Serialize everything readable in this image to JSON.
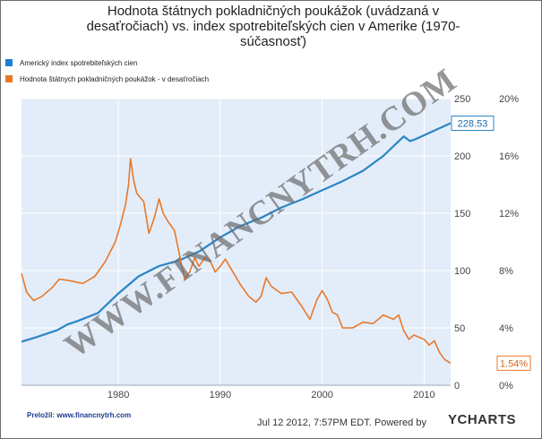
{
  "chart_data": {
    "type": "line",
    "title": "Hodnota štátnych pokladničných poukážok (uvádzaná v desaťročiach) vs. index spotrebiteľských cien v Amerike (1970-súčasnosť)",
    "title_lines": [
      "Hodnota štátnych pokladničných poukážok (uvádzaná v",
      "desaťročiach) vs. index spotrebiteľských cien v Amerike (1970-",
      "súčasnosť)"
    ],
    "legend_position": "top-left",
    "grid": true,
    "x_ticks": [
      "1980",
      "1990",
      "2000",
      "2010"
    ],
    "xlim": [
      1970.5,
      2012.6
    ],
    "y_left": {
      "ticks": [
        "0",
        "50",
        "100",
        "150",
        "200",
        "250"
      ],
      "lim": [
        0,
        250
      ]
    },
    "y_right": {
      "ticks": [
        "0%",
        "4%",
        "8%",
        "12%",
        "16%",
        "20%"
      ],
      "lim": [
        0,
        20
      ]
    },
    "series": [
      {
        "name": "Americký index spotrebiteľských cien",
        "axis": "left",
        "color": "#2a85c4",
        "last_value_label": "228.53",
        "x": [
          1970.5,
          1972,
          1974,
          1975,
          1976,
          1978,
          1980,
          1982,
          1984,
          1986,
          1988,
          1990,
          1992,
          1994,
          1996,
          1998,
          2000,
          2002,
          2004,
          2006,
          2008,
          2008.6,
          2009,
          2010,
          2011,
          2012.6
        ],
        "y": [
          38,
          42,
          48,
          53,
          56,
          63,
          80,
          95,
          104,
          109,
          117,
          129,
          139,
          146,
          155,
          162,
          170,
          178,
          187,
          200,
          217,
          213,
          214,
          218,
          222,
          228.5
        ]
      },
      {
        "name": "Hodnota štátnych pokladničných poukážok - v desaťročiach",
        "axis": "right",
        "color": "#e8782a",
        "last_value_label": "1.54%",
        "x": [
          1970.5,
          1971,
          1971.7,
          1972.5,
          1973.5,
          1974.2,
          1975.2,
          1976.5,
          1977.7,
          1978.7,
          1979.7,
          1980.2,
          1980.7,
          1981,
          1981.2,
          1981.5,
          1981.8,
          1982.5,
          1983,
          1983.5,
          1984,
          1984.4,
          1984.9,
          1985.5,
          1986,
          1986.5,
          1987,
          1987.5,
          1987.9,
          1988.5,
          1989,
          1989.5,
          1990,
          1990.5,
          1991,
          1992,
          1992.8,
          1993.5,
          1994,
          1994.5,
          1995,
          1996,
          1997,
          1998,
          1998.8,
          1999.5,
          2000,
          2000.5,
          2001,
          2001.5,
          2002,
          2003,
          2004,
          2005,
          2006,
          2007,
          2007.5,
          2008,
          2008.5,
          2009,
          2010,
          2010.5,
          2011,
          2011.5,
          2012,
          2012.6
        ],
        "y": [
          7.8,
          6.5,
          5.9,
          6.2,
          6.8,
          7.4,
          7.3,
          7.1,
          7.6,
          8.6,
          10.0,
          11.2,
          12.6,
          14.0,
          15.8,
          14.3,
          13.4,
          12.8,
          10.6,
          11.6,
          13.0,
          12.0,
          11.4,
          10.8,
          9.1,
          7.4,
          7.9,
          8.9,
          8.3,
          8.9,
          8.7,
          7.9,
          8.3,
          8.8,
          8.2,
          7.0,
          6.2,
          5.8,
          6.2,
          7.5,
          6.9,
          6.4,
          6.5,
          5.5,
          4.6,
          6.0,
          6.6,
          6.0,
          5.1,
          4.9,
          4.0,
          4.0,
          4.4,
          4.3,
          4.9,
          4.6,
          4.9,
          3.8,
          3.2,
          3.5,
          3.2,
          2.8,
          3.1,
          2.3,
          1.8,
          1.54
        ]
      }
    ]
  },
  "watermark": "WWW.FINANCNYTRH.COM",
  "footer": {
    "translated_label": "Preložil:",
    "translated_site": "www.financnytrh.com",
    "timestamp": "Jul 12 2012, 7:57PM EDT.",
    "powered_by": "Powered by",
    "brand": "YCHARTS"
  }
}
